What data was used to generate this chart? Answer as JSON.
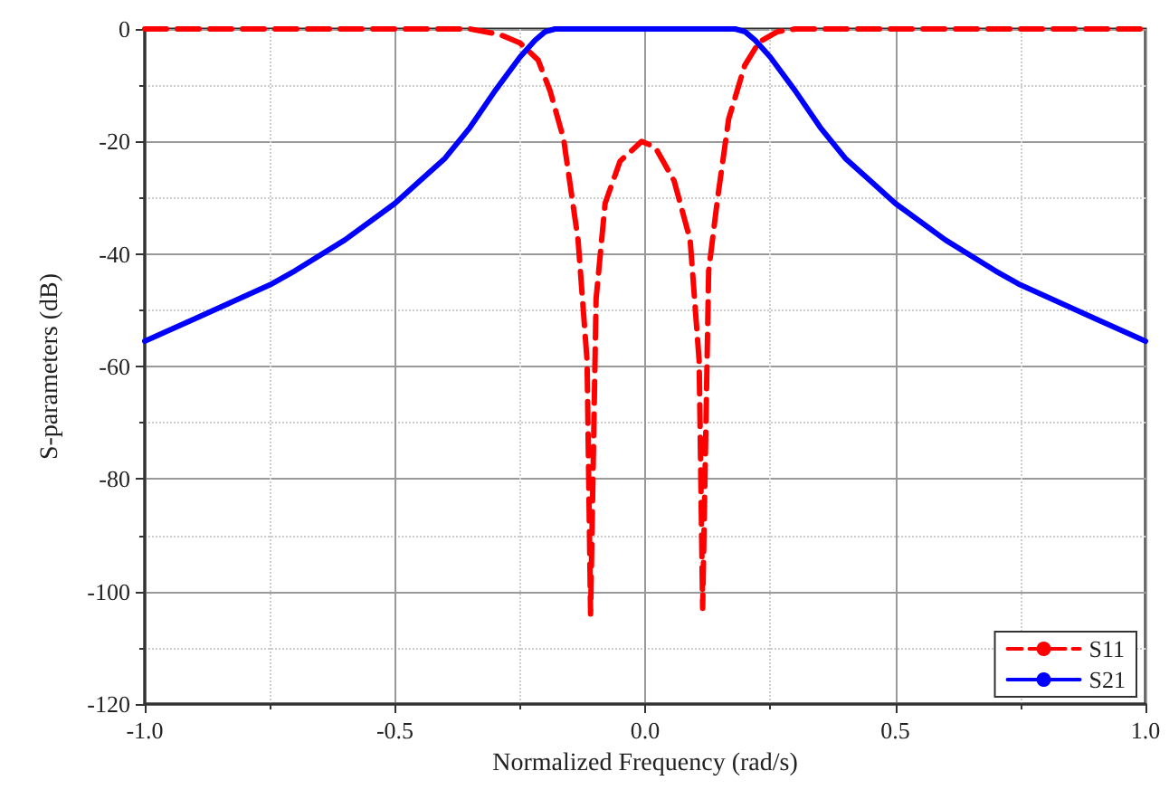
{
  "chart_data": {
    "type": "line",
    "xlabel": "Normalized Frequency (rad/s)",
    "ylabel": "S-parameters (dB)",
    "xlim": [
      -1,
      1
    ],
    "xticks": [
      {
        "value": -1,
        "label": "-1.0"
      },
      {
        "value": -0.5,
        "label": "-0.5"
      },
      {
        "value": 0,
        "label": "0.0"
      },
      {
        "value": 0.5,
        "label": "0.5"
      },
      {
        "value": 1,
        "label": "1.0"
      }
    ],
    "ylim": [
      -120,
      0
    ],
    "yticks": [
      -120,
      -100,
      -80,
      -60,
      -40,
      -20,
      0
    ],
    "grid": true,
    "legend": "bottom right",
    "series": [
      {
        "name": "S11",
        "color": "#ff0000",
        "line_style": "dashed",
        "x": [
          -1,
          -0.5,
          -0.35,
          -0.29,
          -0.25,
          -0.214,
          -0.19,
          -0.163,
          -0.134,
          -0.116,
          -0.109,
          -0.098,
          -0.08,
          -0.05,
          -0.007,
          0.02,
          0.058,
          0.09,
          0.108,
          0.115,
          0.127,
          0.145,
          0.167,
          0.199,
          0.228,
          0.264,
          0.3,
          0.5,
          1
        ],
        "values": [
          0,
          0,
          0,
          -1,
          -2.5,
          -5.5,
          -11,
          -19.5,
          -37.5,
          -59,
          -104,
          -48,
          -31,
          -23.5,
          -20,
          -21,
          -27,
          -37.5,
          -59,
          -103,
          -43,
          -30,
          -16,
          -6.5,
          -2.3,
          -0.5,
          0,
          0,
          0
        ]
      },
      {
        "name": "S21",
        "color": "#0000ff",
        "line_style": "solid",
        "x": [
          -1,
          -0.9,
          -0.8,
          -0.75,
          -0.7,
          -0.6,
          -0.5,
          -0.45,
          -0.4,
          -0.35,
          -0.3,
          -0.25,
          -0.22,
          -0.2,
          -0.18,
          0,
          0.18,
          0.2,
          0.22,
          0.25,
          0.3,
          0.35,
          0.4,
          0.45,
          0.5,
          0.6,
          0.7,
          0.75,
          0.8,
          0.9,
          1
        ],
        "values": [
          -55.5,
          -51.5,
          -47.5,
          -45.5,
          -43,
          -37.5,
          -31,
          -27,
          -23,
          -17.5,
          -11,
          -5,
          -2,
          -0.5,
          0,
          0,
          0,
          -0.5,
          -2,
          -5,
          -11,
          -17.5,
          -23,
          -27,
          -31,
          -37.5,
          -43,
          -45.5,
          -47.5,
          -51.5,
          -55.5
        ]
      }
    ]
  }
}
